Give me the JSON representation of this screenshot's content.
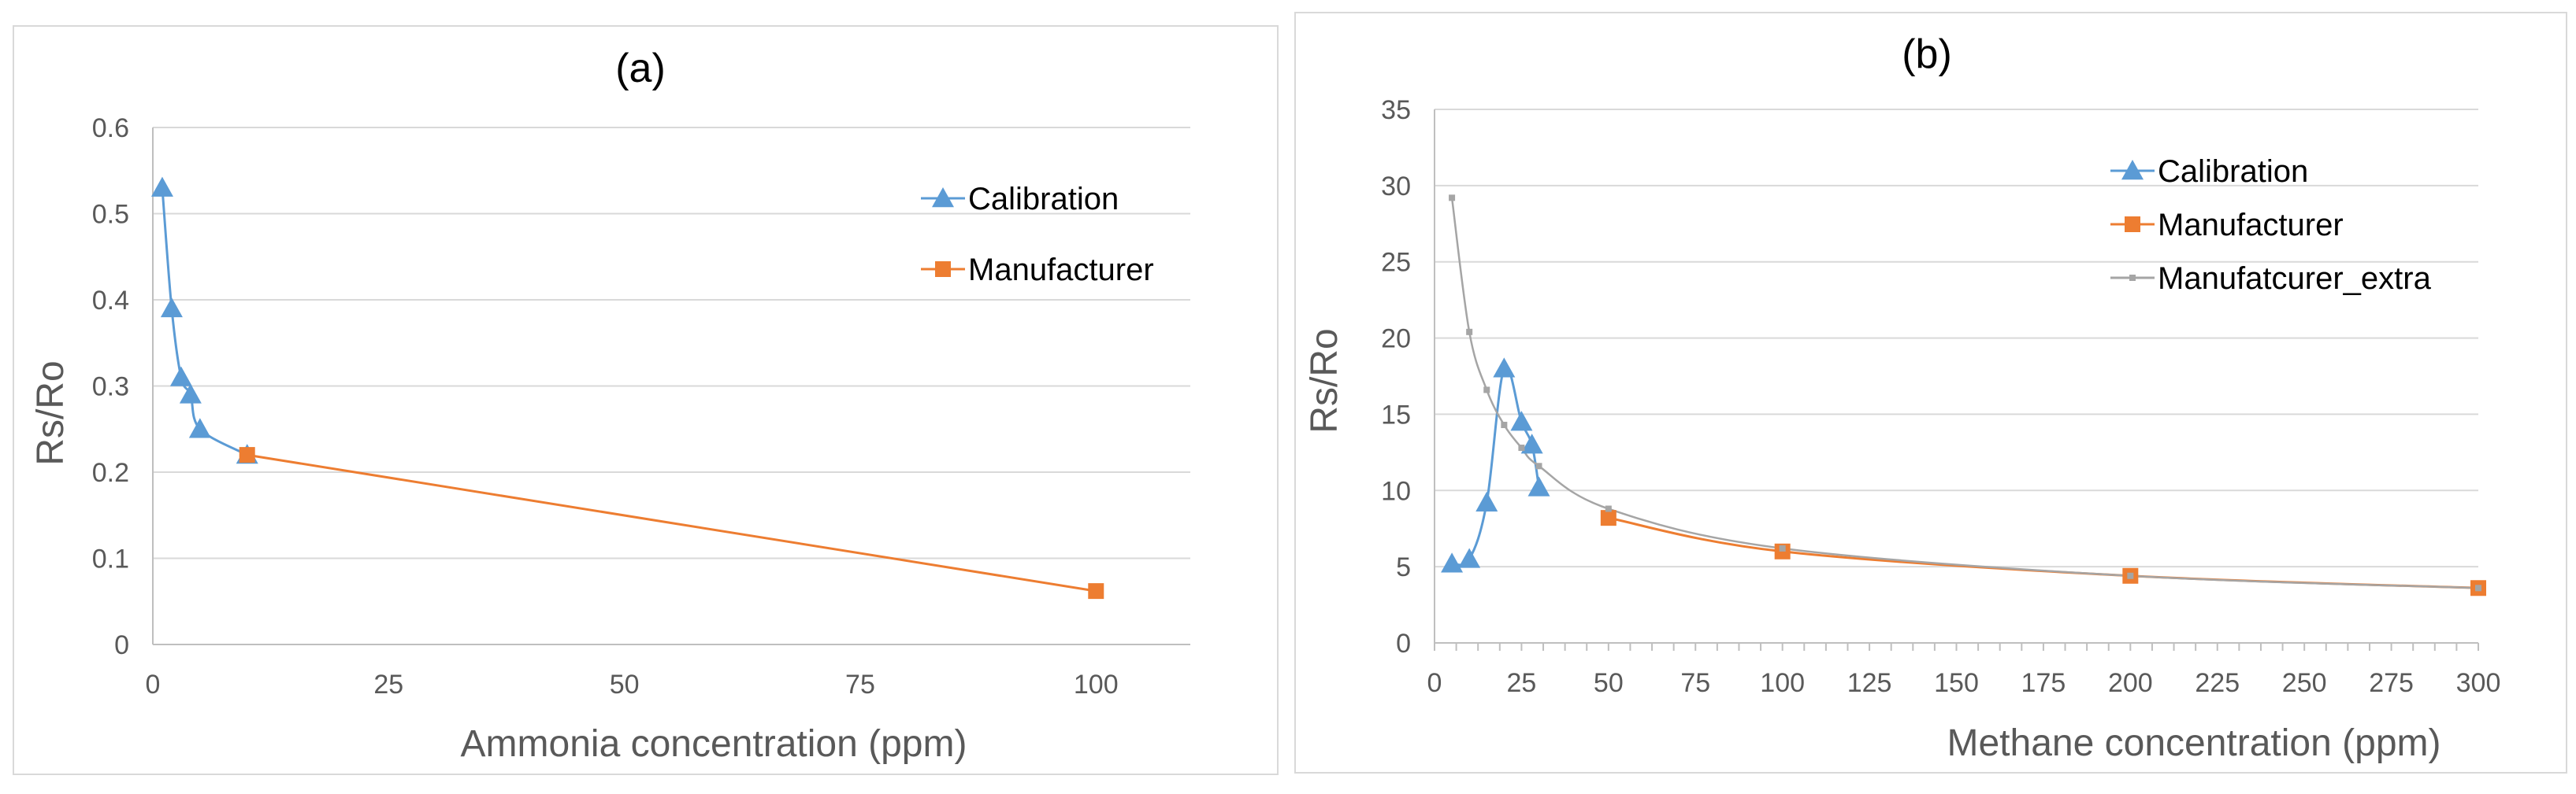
{
  "chart_data": [
    {
      "type": "line",
      "title": "(a)",
      "xlabel": "Ammonia concentration (ppm)",
      "ylabel": "Rs/Ro",
      "xlim": [
        0,
        110
      ],
      "ylim": [
        0,
        0.6
      ],
      "x_ticks": [
        0,
        25,
        50,
        75,
        100
      ],
      "y_ticks": [
        0,
        0.1,
        0.2,
        0.3,
        0.4,
        0.5,
        0.6
      ],
      "y_tick_labels": [
        "0",
        "0.1",
        "0.2",
        "0.3",
        "0.4",
        "0.5",
        "0.6"
      ],
      "legend_position": "top-right",
      "grid": true,
      "series": [
        {
          "name": "Calibration",
          "color": "#5b9bd5",
          "marker": "triangle",
          "x": [
            1,
            2,
            3,
            4,
            5,
            10
          ],
          "y": [
            0.53,
            0.39,
            0.31,
            0.29,
            0.25,
            0.22
          ]
        },
        {
          "name": "Manufacturer",
          "color": "#ed7d31",
          "marker": "square",
          "x": [
            10,
            100
          ],
          "y": [
            0.22,
            0.062
          ]
        }
      ]
    },
    {
      "type": "line",
      "title": "(b)",
      "xlabel": "Methane concentration (ppm)",
      "ylabel": "Rs/Ro",
      "xlim": [
        0,
        300
      ],
      "ylim": [
        0,
        35
      ],
      "x_ticks": [
        0,
        25,
        50,
        75,
        100,
        125,
        150,
        175,
        200,
        225,
        250,
        275,
        300
      ],
      "y_ticks": [
        0,
        5,
        10,
        15,
        20,
        25,
        30,
        35
      ],
      "y_tick_labels": [
        "0",
        "5",
        "10",
        "15",
        "20",
        "25",
        "30",
        "35"
      ],
      "legend_position": "top-right",
      "grid": true,
      "series": [
        {
          "name": "Calibration",
          "color": "#5b9bd5",
          "marker": "triangle",
          "x": [
            5,
            10,
            15,
            20,
            25,
            28,
            30
          ],
          "y": [
            5.2,
            5.5,
            9.2,
            18,
            14.5,
            13,
            10.2
          ]
        },
        {
          "name": "Manufacturer",
          "color": "#ed7d31",
          "marker": "square",
          "x": [
            50,
            100,
            200,
            300
          ],
          "y": [
            8.2,
            6,
            4.4,
            3.6
          ]
        },
        {
          "name": "Manufatcurer_extra",
          "color": "#a5a5a5",
          "marker": "small-square",
          "x": [
            5,
            10,
            15,
            20,
            25,
            30,
            50,
            100,
            200,
            300
          ],
          "y": [
            29.2,
            20.4,
            16.6,
            14.3,
            12.8,
            11.6,
            8.8,
            6.2,
            4.4,
            3.6
          ]
        }
      ]
    }
  ]
}
